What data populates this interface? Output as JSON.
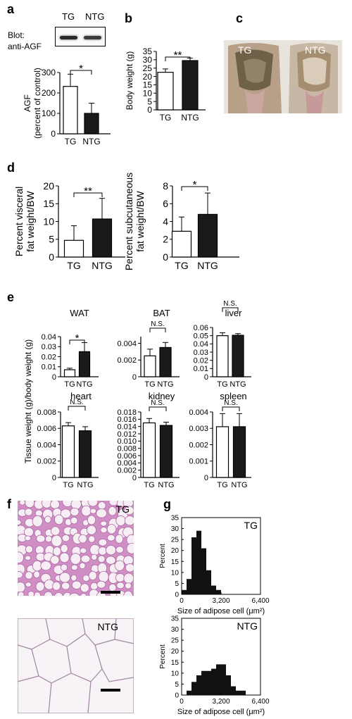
{
  "panels": {
    "a": "a",
    "b": "b",
    "c": "c",
    "d": "d",
    "e": "e",
    "f": "f",
    "g": "g"
  },
  "blot": {
    "title": "Blot:",
    "subtitle": "anti-AGF",
    "lanes": [
      "TG",
      "NTG"
    ]
  },
  "photo_c": {
    "left": "TG",
    "right": "NTG"
  },
  "histology": {
    "top": "TG",
    "bottom": "NTG"
  },
  "e_ylabel": "Tissue weight (g)/body weight (g)",
  "colors": {
    "tg_fill": "#ffffff",
    "ntg_fill": "#1a1a1a",
    "he_pink": "#cf8fc4",
    "he_light": "#e6d3e1"
  },
  "chart_data": [
    {
      "id": "a",
      "type": "bar",
      "categories": [
        "TG",
        "NTG"
      ],
      "values": [
        232,
        100
      ],
      "errors": [
        60,
        50
      ],
      "ylabel": "AGF\n(percent of control)",
      "ylim": [
        0,
        300
      ],
      "yticks": [
        0,
        100,
        200,
        300
      ],
      "ytick_labels": [
        "0",
        "100",
        "200",
        "300"
      ],
      "significance": "*"
    },
    {
      "id": "b",
      "type": "bar",
      "categories": [
        "TG",
        "NTG"
      ],
      "values": [
        22.5,
        29.5
      ],
      "errors": [
        2,
        1.5
      ],
      "ylabel": "Body  weight (g)",
      "ylim": [
        0,
        35
      ],
      "yticks": [
        0,
        5,
        10,
        15,
        20,
        25,
        30,
        35
      ],
      "ytick_labels": [
        "0",
        "5",
        "10",
        "15",
        "20",
        "25",
        "30",
        "35"
      ],
      "significance": "**"
    },
    {
      "id": "d1",
      "type": "bar",
      "categories": [
        "TG",
        "NTG"
      ],
      "values": [
        4.7,
        10.7
      ],
      "errors": [
        4.1,
        5.8
      ],
      "ylabel": "Percent visceral\nfat weight/BW",
      "ylim": [
        0,
        20
      ],
      "yticks": [
        0,
        5,
        10,
        15,
        20
      ],
      "ytick_labels": [
        "0",
        "5",
        "10",
        "15",
        "20"
      ],
      "significance": "**"
    },
    {
      "id": "d2",
      "type": "bar",
      "categories": [
        "TG",
        "NTG"
      ],
      "values": [
        2.9,
        4.8
      ],
      "errors": [
        1.6,
        2.4
      ],
      "ylabel": "Percent subcutaneous\nfat weight/BW",
      "ylim": [
        0,
        8
      ],
      "yticks": [
        0,
        2,
        4,
        6,
        8
      ],
      "ytick_labels": [
        "0",
        "2",
        "4",
        "6",
        "8"
      ],
      "significance": "*"
    },
    {
      "id": "e1",
      "type": "bar",
      "title": "WAT",
      "categories": [
        "TG",
        "NTG"
      ],
      "values": [
        0.007,
        0.025
      ],
      "errors": [
        0.0015,
        0.009
      ],
      "ylim": [
        0,
        0.04
      ],
      "yticks": [
        0,
        0.01,
        0.02,
        0.03,
        0.04
      ],
      "ytick_labels": [
        "0",
        "0.01",
        "0.02",
        "0.03",
        "0.04"
      ],
      "significance": "*"
    },
    {
      "id": "e2",
      "type": "bar",
      "title": "BAT",
      "categories": [
        "TG",
        "NTG"
      ],
      "values": [
        0.0025,
        0.0035
      ],
      "errors": [
        0.0008,
        0.0006
      ],
      "ylim": [
        0,
        0.0048
      ],
      "yticks": [
        0,
        0.002,
        0.004
      ],
      "ytick_labels": [
        "0",
        "0.002",
        "0.004"
      ],
      "significance": "N.S."
    },
    {
      "id": "e3",
      "type": "bar",
      "title": "liver",
      "categories": [
        "TG",
        "NTG"
      ],
      "values": [
        0.05,
        0.0505
      ],
      "errors": [
        0.0035,
        0.002
      ],
      "ylim": [
        0,
        0.06
      ],
      "yticks": [
        0,
        0.01,
        0.02,
        0.03,
        0.04,
        0.05,
        0.06
      ],
      "ytick_labels": [
        "0",
        "0.01",
        "0.02",
        "0.03",
        "0.04",
        "0.05",
        "0.06"
      ],
      "significance": "N.S."
    },
    {
      "id": "e4",
      "type": "bar",
      "title": "heart",
      "categories": [
        "TG",
        "NTG"
      ],
      "values": [
        0.0063,
        0.0057
      ],
      "errors": [
        0.0004,
        0.0005
      ],
      "ylim": [
        0,
        0.008
      ],
      "yticks": [
        0,
        0.002,
        0.004,
        0.006,
        0.008
      ],
      "ytick_labels": [
        "0",
        "0.002",
        "0.004",
        "0.006",
        "0.008"
      ],
      "significance": "N.S."
    },
    {
      "id": "e5",
      "type": "bar",
      "title": "kidney",
      "categories": [
        "TG",
        "NTG"
      ],
      "values": [
        0.015,
        0.0143
      ],
      "errors": [
        0.0012,
        0.0009
      ],
      "ylim": [
        0,
        0.018
      ],
      "yticks": [
        0,
        0.002,
        0.004,
        0.006,
        0.008,
        0.01,
        0.012,
        0.014,
        0.016,
        0.018
      ],
      "ytick_labels": [
        "0",
        "0.002",
        "0.004",
        "0.006",
        "0.008",
        "0.010",
        "0.012",
        "0.014",
        "0.016",
        "0.018"
      ],
      "significance": "N.S."
    },
    {
      "id": "e6",
      "type": "bar",
      "title": "spleen",
      "categories": [
        "TG",
        "NTG"
      ],
      "values": [
        0.0031,
        0.0031
      ],
      "errors": [
        0.0008,
        0.0008
      ],
      "ylim": [
        0,
        0.004
      ],
      "yticks": [
        0,
        0.001,
        0.002,
        0.003,
        0.004
      ],
      "ytick_labels": [
        "0",
        "0.001",
        "0.002",
        "0.003",
        "0.004"
      ],
      "significance": "N.S."
    },
    {
      "id": "g1",
      "type": "histogram",
      "title": "TG",
      "bins": [
        0,
        400,
        800,
        1200,
        1600,
        2000,
        2400,
        2800,
        3200,
        3600,
        4000,
        4400,
        4800,
        5200,
        5600,
        6000,
        6400
      ],
      "values": [
        2,
        7,
        26,
        29,
        21,
        11,
        4,
        2,
        0,
        0,
        0,
        0,
        0,
        0,
        0,
        0
      ],
      "xlabel": "Size of adipose cell (μm²)",
      "ylabel": "Percent",
      "xlim": [
        0,
        6400
      ],
      "ylim": [
        0,
        35
      ],
      "xticks": [
        0,
        3200,
        6400
      ],
      "xtick_labels": [
        "0",
        "3,200",
        "6,400"
      ],
      "yticks": [
        0,
        5,
        10,
        15,
        20,
        25,
        30,
        35
      ],
      "ytick_labels": [
        "0",
        "5",
        "10",
        "15",
        "20",
        "25",
        "30",
        "35"
      ]
    },
    {
      "id": "g2",
      "type": "histogram",
      "title": "NTG",
      "bins": [
        0,
        400,
        800,
        1200,
        1600,
        2000,
        2400,
        2800,
        3200,
        3600,
        4000,
        4400,
        4800,
        5200,
        5600,
        6000,
        6400
      ],
      "values": [
        0,
        2,
        6,
        9,
        11,
        11,
        12,
        14,
        14,
        9,
        4,
        2,
        2,
        0,
        0,
        0
      ],
      "xlabel": "Size of adipose cell (μm²)",
      "ylabel": "Percent",
      "xlim": [
        0,
        6400
      ],
      "ylim": [
        0,
        35
      ],
      "xticks": [
        0,
        3200,
        6400
      ],
      "xtick_labels": [
        "0",
        "3,200",
        "6,400"
      ],
      "yticks": [
        0,
        5,
        10,
        15,
        20,
        25,
        30,
        35
      ],
      "ytick_labels": [
        "0",
        "5",
        "10",
        "15",
        "20",
        "25",
        "30",
        "35"
      ]
    }
  ]
}
